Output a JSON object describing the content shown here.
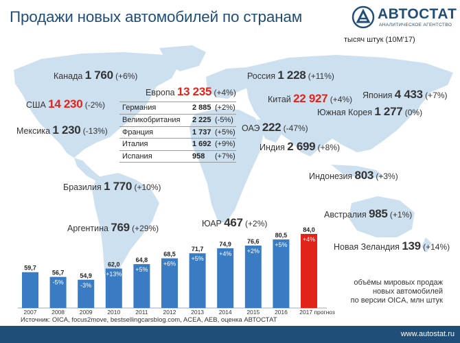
{
  "header": {
    "title": "Продажи новых автомобилей по странам",
    "logo_name": "АВТОСТАТ",
    "logo_sub": "АНАЛИТИЧЕСКОЕ АГЕНТСТВО",
    "unit": "тысяч штук (10М'17)"
  },
  "countries": {
    "canada": {
      "name": "Канада",
      "value": "1 760",
      "pct": "(+6%)"
    },
    "usa": {
      "name": "США",
      "value": "14 230",
      "pct": "(-2%)"
    },
    "mexico": {
      "name": "Мексика",
      "value": "1 230",
      "pct": "(-13%)"
    },
    "brazil": {
      "name": "Бразилия",
      "value": "1 770",
      "pct": "(+10%)"
    },
    "argentina": {
      "name": "Аргентина",
      "value": "769",
      "pct": "(+29%)"
    },
    "europe": {
      "name": "Европа",
      "value": "13 235",
      "pct": "(+4%)"
    },
    "russia": {
      "name": "Россия",
      "value": "1 228",
      "pct": "(+11%)"
    },
    "china": {
      "name": "Китай",
      "value": "22 927",
      "pct": "(+4%)"
    },
    "japan": {
      "name": "Япония",
      "value": "4 433",
      "pct": "(+7%)"
    },
    "korea": {
      "name": "Южная Корея",
      "value": "1 277",
      "pct": "(0%)"
    },
    "uae": {
      "name": "ОАЭ",
      "value": "222",
      "pct": "(-47%)"
    },
    "india": {
      "name": "Индия",
      "value": "2 699",
      "pct": "(+8%)"
    },
    "indonesia": {
      "name": "Индонезия",
      "value": "803",
      "pct": "(+3%)"
    },
    "sar": {
      "name": "ЮАР",
      "value": "467",
      "pct": "(+2%)"
    },
    "australia": {
      "name": "Австралия",
      "value": "985",
      "pct": "(+1%)"
    },
    "nz": {
      "name": "Новая Зеландия",
      "value": "139",
      "pct": "(+14%)"
    }
  },
  "europe_rows": [
    {
      "name": "Германия",
      "value": "2 885",
      "pct": "(+2%)"
    },
    {
      "name": "Великобритания",
      "value": "2 225",
      "pct": "(-5%)"
    },
    {
      "name": "Франция",
      "value": "1 737",
      "pct": "(+5%)"
    },
    {
      "name": "Италия",
      "value": "1 692",
      "pct": "(+9%)"
    },
    {
      "name": "Испания",
      "value": "958",
      "pct": "(+7%)"
    }
  ],
  "chart_data": {
    "type": "bar",
    "categories": [
      "2007",
      "2008",
      "2009",
      "2010",
      "2011",
      "2012",
      "2013",
      "2014",
      "2015",
      "2016",
      "2017 прогноз"
    ],
    "values": [
      59.7,
      56.7,
      54.9,
      62.0,
      64.8,
      68.5,
      71.7,
      74.9,
      76.6,
      80.5,
      84.0
    ],
    "value_labels": [
      "59,7",
      "56,7",
      "54,9",
      "62,0",
      "64,8",
      "68,5",
      "71,7",
      "74,9",
      "76,6",
      "80,5",
      "84,0"
    ],
    "change_labels": [
      "",
      "-5%",
      "-3%",
      "+13%",
      "+5%",
      "+6%",
      "+5%",
      "+4%",
      "+2%",
      "+5%",
      "+4%"
    ],
    "bar_color": "#3a7cc3",
    "highlight_color": "#e2231a",
    "note_lines": [
      "объёмы мировых продаж",
      "новых автомобилей",
      "по версии OICA, млн штук"
    ]
  },
  "source": "Источник: OICA, focus2move, bestsellingcarsblog.com, ACEA, AEB, оценка АВТОСТАТ",
  "footer_url": "www.autostat.ru",
  "colors": {
    "brand": "#1f4e79",
    "accent_red": "#e2231a",
    "map": "#cde0ef"
  }
}
